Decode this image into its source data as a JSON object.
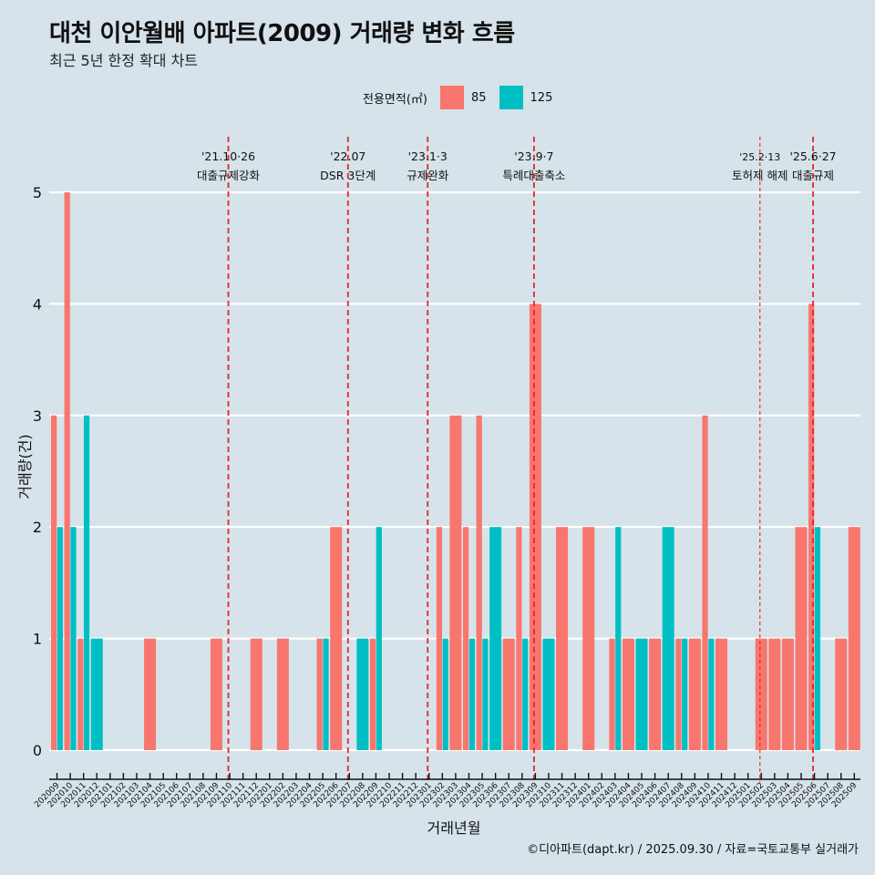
{
  "header": {
    "title": "대천 이안월배 아파트(2009) 거래량 변화 흐름",
    "subtitle": "최근 5년 한정 확대 차트"
  },
  "legend": {
    "title": "전용면적(㎡)",
    "items": [
      {
        "label": "85",
        "color": "#F8766D"
      },
      {
        "label": "125",
        "color": "#00BFC4"
      }
    ]
  },
  "caption": "©디아파트(dapt.kr) / 2025.09.30 / 자료=국토교통부 실거래가",
  "chart_data": {
    "type": "bar",
    "title": "대천 이안월배 아파트(2009) 거래량 변화 흐름",
    "subtitle": "최근 5년 한정 확대 차트",
    "xlabel": "거래년월",
    "ylabel": "거래량(건)",
    "ylim": [
      0,
      5
    ],
    "yticks": [
      0,
      1,
      2,
      3,
      4,
      5
    ],
    "grid": true,
    "legend_position": "top",
    "categories": [
      "202009",
      "202010",
      "202011",
      "202012",
      "202101",
      "202102",
      "202103",
      "202104",
      "202105",
      "202106",
      "202107",
      "202108",
      "202109",
      "202110",
      "202111",
      "202112",
      "202201",
      "202202",
      "202203",
      "202204",
      "202205",
      "202206",
      "202207",
      "202208",
      "202209",
      "202210",
      "202211",
      "202212",
      "202301",
      "202302",
      "202303",
      "202304",
      "202305",
      "202306",
      "202307",
      "202308",
      "202309",
      "202310",
      "202311",
      "202312",
      "202401",
      "202402",
      "202403",
      "202404",
      "202405",
      "202406",
      "202407",
      "202408",
      "202409",
      "202410",
      "202411",
      "202412",
      "202501",
      "202502",
      "202503",
      "202504",
      "202505",
      "202506",
      "202507",
      "202508",
      "202509"
    ],
    "series": [
      {
        "name": "85",
        "color": "#F8766D",
        "values": [
          3,
          5,
          1,
          0,
          0,
          0,
          0,
          1,
          0,
          0,
          0,
          0,
          1,
          0,
          0,
          1,
          0,
          1,
          0,
          0,
          1,
          2,
          0,
          0,
          1,
          0,
          0,
          0,
          0,
          2,
          3,
          2,
          3,
          0,
          1,
          2,
          4,
          0,
          2,
          0,
          2,
          0,
          1,
          1,
          0,
          1,
          0,
          1,
          1,
          3,
          1,
          0,
          0,
          1,
          1,
          1,
          2,
          4,
          0,
          1,
          2
        ]
      },
      {
        "name": "125",
        "color": "#00BFC4",
        "values": [
          2,
          2,
          3,
          1,
          0,
          0,
          0,
          0,
          0,
          0,
          0,
          0,
          0,
          0,
          0,
          0,
          0,
          0,
          0,
          0,
          1,
          0,
          0,
          1,
          2,
          0,
          0,
          0,
          0,
          1,
          0,
          1,
          1,
          2,
          0,
          1,
          0,
          1,
          0,
          0,
          0,
          0,
          2,
          0,
          1,
          0,
          2,
          1,
          0,
          1,
          0,
          0,
          0,
          0,
          0,
          0,
          0,
          2,
          0,
          0,
          0
        ]
      }
    ],
    "annotations": [
      {
        "category": "202110",
        "date": "'21.10·26",
        "label": "대출규제강화",
        "style": "bold"
      },
      {
        "category": "202207",
        "date": "'22.07",
        "label": "DSR 3단계",
        "style": "bold"
      },
      {
        "category": "202301",
        "date": "'23.1·3",
        "label": "규제완화",
        "style": "bold"
      },
      {
        "category": "202309",
        "date": "'23.9·7",
        "label": "특례대출축소",
        "style": "bold"
      },
      {
        "category": "202502",
        "date": "'25.2·13",
        "label": "토허제 해제",
        "style": "light"
      },
      {
        "category": "202506",
        "date": "'25.6·27",
        "label": "대출규제",
        "style": "bold"
      }
    ]
  }
}
